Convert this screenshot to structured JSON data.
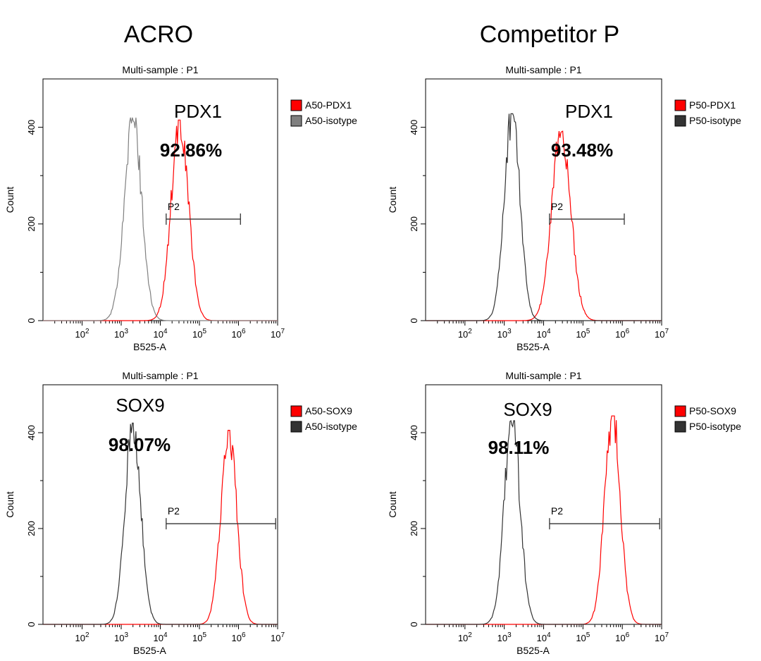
{
  "columns": [
    {
      "title": "ACRO"
    },
    {
      "title": "Competitor P"
    }
  ],
  "chart_data": [
    {
      "type": "line",
      "title": "Multi-sample : P1",
      "marker": "PDX1",
      "percent_label": "92.86%",
      "xlabel": "B525-A",
      "ylabel": "Count",
      "x_scale": "log10",
      "xlim": [
        1,
        7
      ],
      "ylim": [
        0,
        500
      ],
      "x_ticks": [
        2,
        3,
        4,
        5,
        6,
        7
      ],
      "y_ticks": [
        0,
        200,
        400
      ],
      "gate": {
        "label": "P2",
        "x_start": 4.15,
        "x_end": 6.05,
        "y": 210
      },
      "legend_position": "right",
      "series": [
        {
          "name": "A50-PDX1",
          "color": "#ff0000",
          "center": 4.5,
          "sigma": 0.22,
          "peak": 415
        },
        {
          "name": "A50-isotype",
          "color": "#808080",
          "center": 3.3,
          "sigma": 0.22,
          "peak": 420
        }
      ]
    },
    {
      "type": "line",
      "title": "Multi-sample : P1",
      "marker": "PDX1",
      "percent_label": "93.48%",
      "xlabel": "B525-A",
      "ylabel": "Count",
      "x_scale": "log10",
      "xlim": [
        1,
        7
      ],
      "ylim": [
        0,
        500
      ],
      "x_ticks": [
        2,
        3,
        4,
        5,
        6,
        7
      ],
      "y_ticks": [
        0,
        200,
        400
      ],
      "gate": {
        "label": "P2",
        "x_start": 4.15,
        "x_end": 6.05,
        "y": 210
      },
      "legend_position": "right",
      "series": [
        {
          "name": "P50-PDX1",
          "color": "#ff0000",
          "center": 4.45,
          "sigma": 0.24,
          "peak": 392
        },
        {
          "name": "P50-isotype",
          "color": "#333333",
          "center": 3.2,
          "sigma": 0.2,
          "peak": 428
        }
      ]
    },
    {
      "type": "line",
      "title": "Multi-sample : P1",
      "marker": "SOX9",
      "percent_label": "98.07%",
      "xlabel": "B525-A",
      "ylabel": "Count",
      "x_scale": "log10",
      "xlim": [
        1,
        7
      ],
      "ylim": [
        0,
        500
      ],
      "x_ticks": [
        2,
        3,
        4,
        5,
        6,
        7
      ],
      "y_ticks": [
        0,
        200,
        400
      ],
      "gate": {
        "label": "P2",
        "x_start": 4.15,
        "x_end": 6.95,
        "y": 210
      },
      "legend_position": "right",
      "series": [
        {
          "name": "A50-SOX9",
          "color": "#ff0000",
          "center": 5.75,
          "sigma": 0.2,
          "peak": 405
        },
        {
          "name": "A50-isotype",
          "color": "#333333",
          "center": 3.3,
          "sigma": 0.2,
          "peak": 420
        }
      ]
    },
    {
      "type": "line",
      "title": "Multi-sample : P1",
      "marker": "SOX9",
      "percent_label": "98.11%",
      "xlabel": "B525-A",
      "ylabel": "Count",
      "x_scale": "log10",
      "xlim": [
        1,
        7
      ],
      "ylim": [
        0,
        500
      ],
      "x_ticks": [
        2,
        3,
        4,
        5,
        6,
        7
      ],
      "y_ticks": [
        0,
        200,
        400
      ],
      "gate": {
        "label": "P2",
        "x_start": 4.15,
        "x_end": 6.95,
        "y": 210
      },
      "legend_position": "right",
      "series": [
        {
          "name": "P50-SOX9",
          "color": "#ff0000",
          "center": 5.75,
          "sigma": 0.2,
          "peak": 435
        },
        {
          "name": "P50-isotype",
          "color": "#333333",
          "center": 3.2,
          "sigma": 0.2,
          "peak": 425
        }
      ]
    }
  ]
}
